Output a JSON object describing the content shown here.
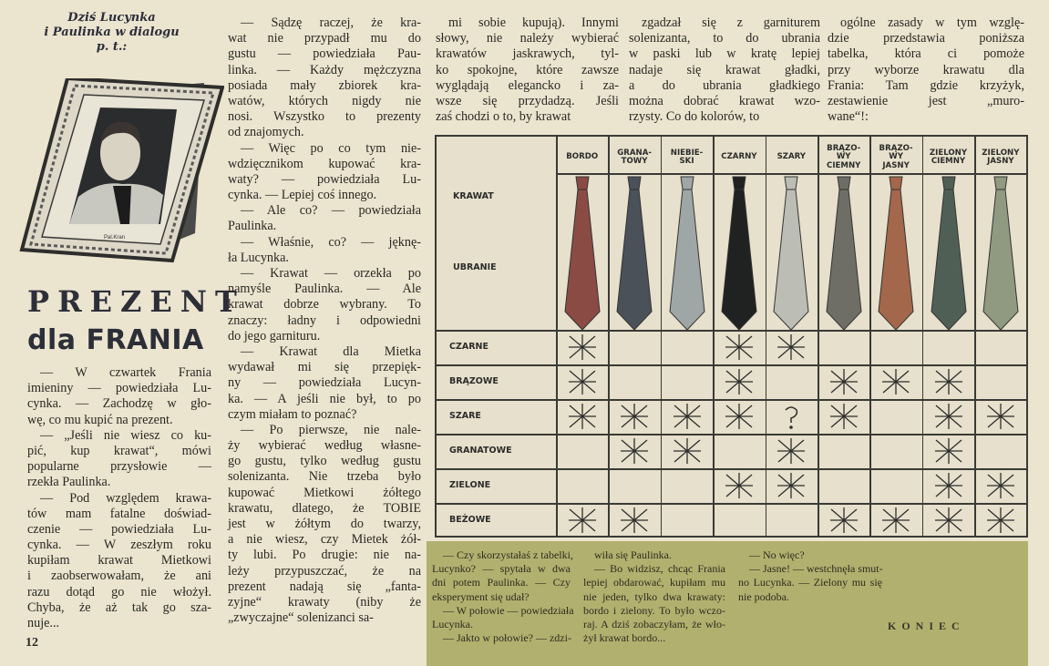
{
  "intro": {
    "lines": [
      "Dziś Lucynka",
      "i Paulinka w dialogu",
      "p. t.:"
    ]
  },
  "picture": {
    "signature": "Pal.Kran"
  },
  "title": {
    "line1": "PREZENT",
    "line2": "dla FRANIA"
  },
  "page_number": "12",
  "columns": [
    [
      [
        "— W czwartek Frania",
        "imieniny — powiedziała Lu-",
        "cynka. — Zachodzę w gło-",
        "wę, co mu kupić na prezent."
      ],
      [
        "— „Jeśli nie wiesz co ku-",
        "pić, kup krawat“, mówi",
        "popularne przysłowie —",
        "rzekła Paulinka."
      ],
      [
        "— Pod względem krawa-",
        "tów mam fatalne doświad-",
        "czenie — powiedziała Lu-",
        "cynka. — W zeszłym roku",
        "kupiłam krawat Mietkowi",
        "i zaobserwowałam, że ani",
        "razu dotąd go nie włożył.",
        "Chyba, że aż tak go sza-",
        "nuje..."
      ]
    ],
    [
      [
        "— Sądzę raczej, że kra-",
        "wat nie przypadł mu do",
        "gustu — powiedziała Pau-",
        "linka. — Każdy mężczyzna",
        "posiada mały zbiorek kra-",
        "watów, których nigdy nie",
        "nosi. Wszystko to prezenty",
        "od znajomych."
      ],
      [
        "— Więc po co tym nie-",
        "wdzięcznikom kupować kra-",
        "waty? — powiedziała Lu-",
        "cynka. — Lepiej coś innego."
      ],
      [
        "— Ale co? — powiedziała",
        "Paulinka."
      ],
      [
        "— Właśnie, co? — jęknę-",
        "ła Lucynka."
      ],
      [
        "— Krawat — orzekła po",
        "namyśle Paulinka. — Ale",
        "krawat dobrze wybrany. To",
        "znaczy: ładny i odpowiedni",
        "do jego garnituru."
      ],
      [
        "— Krawat dla Mietka",
        "wydawał mi się przepięk-",
        "ny — powiedziała Lucyn-",
        "ka. — A jeśli nie był, to po",
        "czym miałam to poznać?"
      ],
      [
        "— Po pierwsze, nie nale-",
        "ży wybierać według własne-",
        "go gustu, tylko według gustu",
        "solenizanta. Nie trzeba było",
        "kupować Mietkowi żółtego",
        "krawatu, dlatego, że TOBIE",
        "jest w żółtym do twarzy,",
        "a nie wiesz, czy Mietek żół-",
        "ty lubi. Po drugie: nie na-",
        "leży przypuszczać, że na",
        "prezent nadają się „fanta-",
        "zyjne“ krawaty (niby że",
        "„zwyczajne“ solenizanci sa-"
      ]
    ],
    [
      [
        "mi sobie kupują). Innymi",
        "słowy, nie należy wybierać",
        "krawatów jaskrawych, tyl-",
        "ko spokojne, które zawsze",
        "wyglądają elegancko i za-",
        "wsze się przydadzą. Jeśli",
        "zaś chodzi o to, by krawat"
      ]
    ],
    [
      [
        "zgadzał się z garniturem",
        "solenizanta, to do ubrania",
        "w paski lub w kratę lepiej",
        "nadaje się krawat gładki,",
        "a do ubrania gładkiego",
        "można dobrać krawat wzo-",
        "rzysty. Co do kolorów, to"
      ]
    ],
    [
      [
        "ogólne zasady w tym wzglę-",
        "dzie przedstawia poniższa",
        "tabelka, która ci pomoże",
        "przy wyborze krawatu dla",
        "Frania: Tam gdzie krzyżyk,",
        "zestawienie jest „muro-",
        "wane“!:"
      ]
    ]
  ],
  "table": {
    "corner_top": "KRAWAT",
    "corner_bottom": "UBRANIE",
    "tie_columns": [
      {
        "label": "BORDO",
        "color": "#8a4b45"
      },
      {
        "label": "GRANA-\nTOWY",
        "color": "#4b5159"
      },
      {
        "label": "NIEBIE-\nSKI",
        "color": "#9ea7a6"
      },
      {
        "label": "CZARNY",
        "color": "#1f2220"
      },
      {
        "label": "SZARY",
        "color": "#bcbdb5"
      },
      {
        "label": "BRĄZO-\nWY\nCIEMNY",
        "color": "#6f6e66"
      },
      {
        "label": "BRĄZO-\nWY\nJASNY",
        "color": "#a3674b"
      },
      {
        "label": "ZIELONY\nCIEMNY",
        "color": "#4f5f56"
      },
      {
        "label": "ZIELONY\nJASNY",
        "color": "#8f9a80"
      }
    ],
    "rows": [
      {
        "label": "CZARNE",
        "marks": [
          "x",
          "",
          "",
          "x",
          "x",
          "",
          "",
          "",
          ""
        ]
      },
      {
        "label": "BRĄZOWE",
        "marks": [
          "x",
          "",
          "",
          "x",
          "",
          "x",
          "x",
          "x",
          ""
        ]
      },
      {
        "label": "SZARE",
        "marks": [
          "x",
          "x",
          "x",
          "x",
          "?",
          "x",
          "",
          "x",
          "x"
        ]
      },
      {
        "label": "GRANATOWE",
        "marks": [
          "",
          "x",
          "x",
          "",
          "x",
          "",
          "",
          "x",
          ""
        ]
      },
      {
        "label": "ZIELONE",
        "marks": [
          "",
          "",
          "",
          "x",
          "x",
          "",
          "",
          "x",
          "x"
        ]
      },
      {
        "label": "BEŻOWE",
        "marks": [
          "x",
          "x",
          "",
          "",
          "",
          "x",
          "x",
          "x",
          "x"
        ]
      }
    ]
  },
  "ending": {
    "columns": [
      [
        [
          "— Czy skorzystałaś z tabelki,",
          "Lucynko? — spytała w dwa",
          "dni potem Paulinka. — Czy",
          "eksperyment się udał?"
        ],
        [
          "— W połowie — powiedziała",
          "Lucynka."
        ],
        [
          "— Jakto w połowie? — zdzi-"
        ]
      ],
      [
        [
          "wiła się Paulinka."
        ],
        [
          "— Bo widzisz, chcąc Frania",
          "lepiej obdarować, kupiłam mu",
          "nie jeden, tylko dwa krawaty:",
          "bordo i zielony. To było wczo-",
          "raj. A dziś zobaczyłam, że wło-",
          "żył krawat bordo..."
        ]
      ],
      [
        [
          "— No więc?"
        ],
        [
          "— Jasne! — westchnęła smut-",
          "no Lucynka. — Zielony mu się",
          "nie podoba."
        ]
      ]
    ],
    "end_label": "KONIEC",
    "background": "#b2b06e"
  }
}
